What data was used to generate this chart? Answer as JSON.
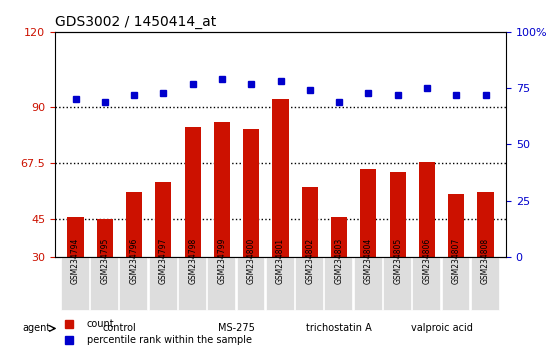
{
  "title": "GDS3002 / 1450414_at",
  "samples": [
    "GSM234794",
    "GSM234795",
    "GSM234796",
    "GSM234797",
    "GSM234798",
    "GSM234799",
    "GSM234800",
    "GSM234801",
    "GSM234802",
    "GSM234803",
    "GSM234804",
    "GSM234805",
    "GSM234806",
    "GSM234807",
    "GSM234808"
  ],
  "counts": [
    46,
    45,
    56,
    60,
    82,
    84,
    81,
    93,
    58,
    46,
    65,
    64,
    68,
    55,
    56
  ],
  "percentiles": [
    70,
    69,
    72,
    73,
    77,
    79,
    77,
    78,
    74,
    69,
    73,
    72,
    75,
    72,
    72
  ],
  "bar_color": "#cc1100",
  "dot_color": "#0000cc",
  "left_ylim": [
    30,
    120
  ],
  "left_yticks": [
    30,
    45,
    67.5,
    90,
    120
  ],
  "left_yticklabels": [
    "30",
    "45",
    "67.5",
    "90",
    "120"
  ],
  "right_ylim": [
    0,
    100
  ],
  "right_yticks": [
    0,
    25,
    50,
    75,
    100
  ],
  "right_yticklabels": [
    "0",
    "25",
    "50",
    "75",
    "100%"
  ],
  "hlines": [
    45,
    67.5,
    90
  ],
  "groups": [
    {
      "label": "control",
      "start": 0,
      "end": 3,
      "color": "#ccffcc"
    },
    {
      "label": "MS-275",
      "start": 4,
      "end": 7,
      "color": "#88ee88"
    },
    {
      "label": "trichostatin A",
      "start": 8,
      "end": 10,
      "color": "#55cc55"
    },
    {
      "label": "valproic acid",
      "start": 11,
      "end": 14,
      "color": "#33bb33"
    }
  ],
  "legend_count_color": "#cc1100",
  "legend_dot_color": "#0000cc",
  "agent_label": "agent",
  "background_plot": "#ffffff",
  "tick_label_color_left": "#cc1100",
  "tick_label_color_right": "#0000cc"
}
